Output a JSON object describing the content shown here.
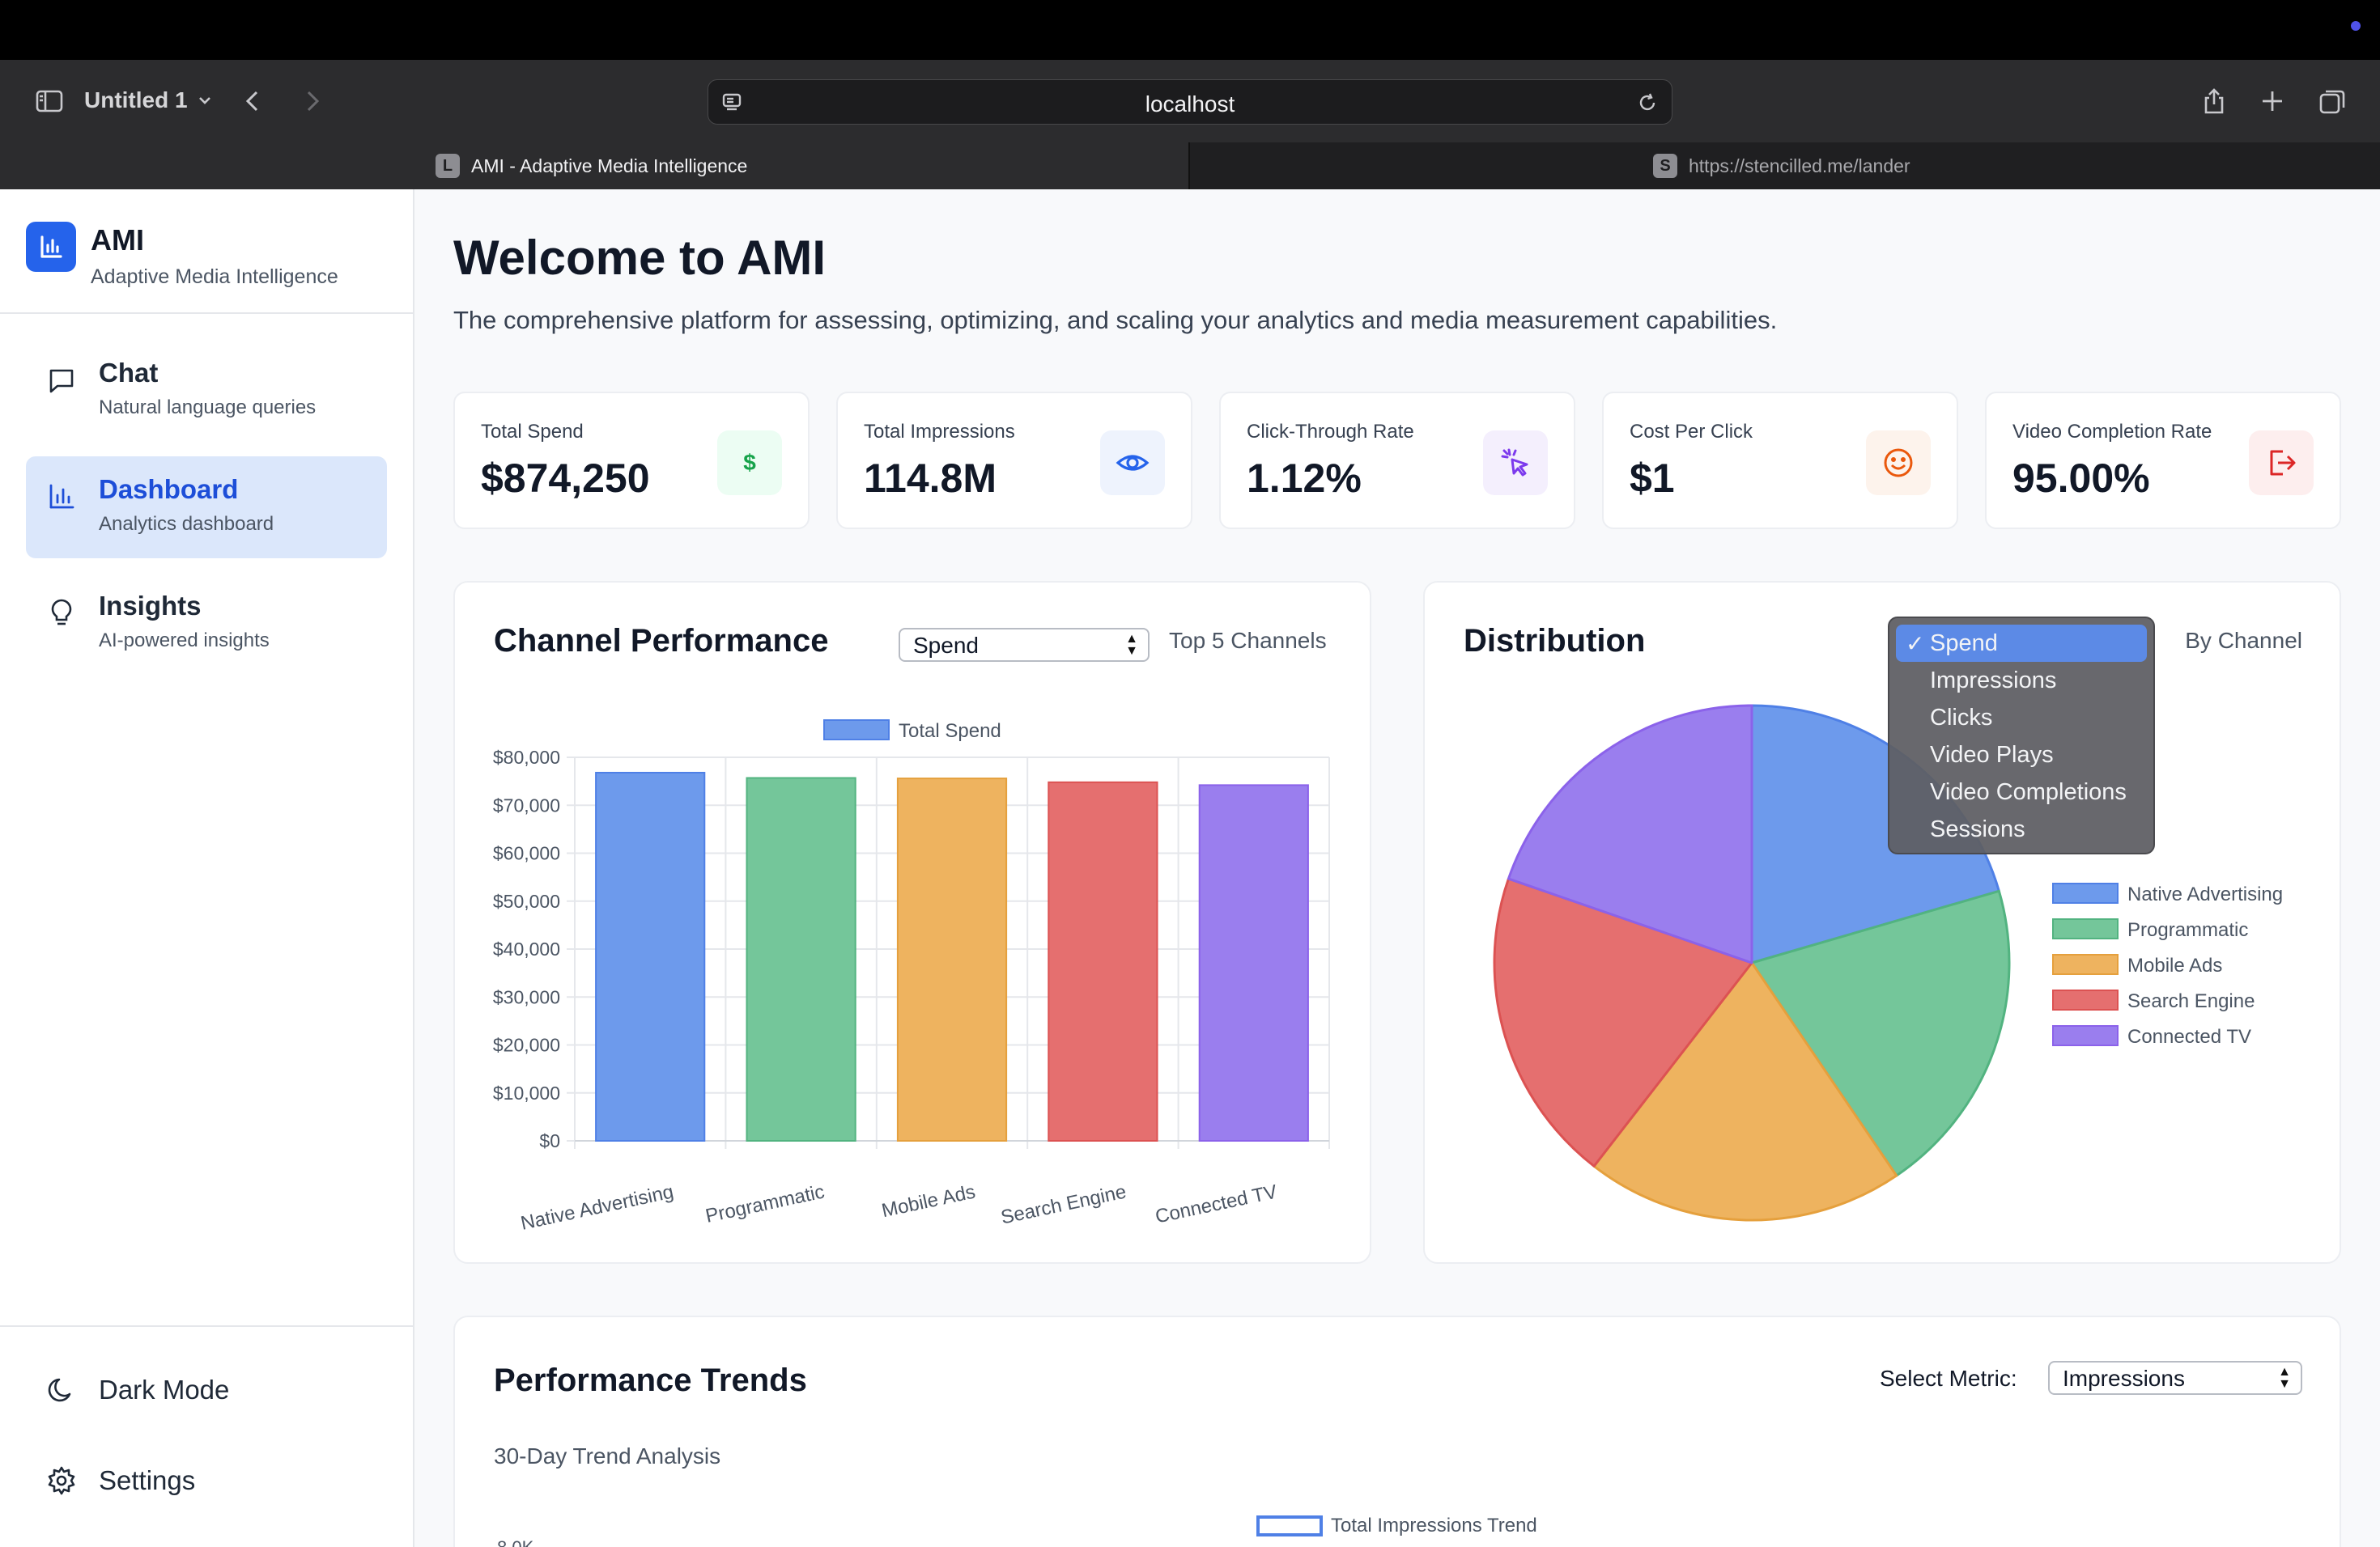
{
  "browser": {
    "window_title": "Untitled 1",
    "url": "localhost",
    "tabs": [
      {
        "favicon": "L",
        "label": "AMI - Adaptive Media Intelligence"
      },
      {
        "favicon": "S",
        "label": "https://stencilled.me/lander"
      }
    ]
  },
  "sidebar": {
    "brand_name": "AMI",
    "brand_sub": "Adaptive Media Intelligence",
    "nav": [
      {
        "title": "Chat",
        "sub": "Natural language queries",
        "icon": "chat-icon"
      },
      {
        "title": "Dashboard",
        "sub": "Analytics dashboard",
        "icon": "bar-chart-icon"
      },
      {
        "title": "Insights",
        "sub": "AI-powered insights",
        "icon": "lightbulb-icon"
      }
    ],
    "footer": [
      {
        "label": "Dark Mode",
        "icon": "moon-icon"
      },
      {
        "label": "Settings",
        "icon": "gear-icon"
      }
    ]
  },
  "main": {
    "title": "Welcome to AMI",
    "subtitle": "The comprehensive platform for assessing, optimizing, and scaling your analytics and media measurement capabilities.",
    "kpis": [
      {
        "label": "Total Spend",
        "value": "$874,250",
        "icon": "dollar-icon",
        "color": "#16a34a",
        "bg": "#ecfdf3"
      },
      {
        "label": "Total Impressions",
        "value": "114.8M",
        "icon": "eye-icon",
        "color": "#2563eb",
        "bg": "#eef3fd"
      },
      {
        "label": "Click-Through Rate",
        "value": "1.12%",
        "icon": "cursor-click-icon",
        "color": "#7c3aed",
        "bg": "#f4effd"
      },
      {
        "label": "Cost Per Click",
        "value": "$1",
        "icon": "smile-icon",
        "color": "#ea580c",
        "bg": "#fdf3ec"
      },
      {
        "label": "Video Completion Rate",
        "value": "95.00%",
        "icon": "exit-icon",
        "color": "#dc2626",
        "bg": "#fdeeee"
      }
    ],
    "channel_performance": {
      "title": "Channel Performance",
      "select_value": "Spend",
      "side_label": "Top 5 Channels"
    },
    "distribution": {
      "title": "Distribution",
      "side_label": "By Channel",
      "dropdown_options": [
        "Spend",
        "Impressions",
        "Clicks",
        "Video Plays",
        "Video Completions",
        "Sessions"
      ],
      "dropdown_selected": "Spend"
    },
    "trends": {
      "title": "Performance Trends",
      "select_label": "Select Metric:",
      "select_value": "Impressions",
      "subtitle": "30-Day Trend Analysis",
      "legend": "Total Impressions Trend",
      "partial_tick": "8.0K"
    }
  },
  "chart_data": [
    {
      "type": "bar",
      "categories": [
        "Native Advertising",
        "Programmatic",
        "Mobile Ads",
        "Search Engine",
        "Connected TV"
      ],
      "series": [
        {
          "name": "Total Spend",
          "values": [
            76800,
            75700,
            75600,
            74800,
            74200
          ]
        }
      ],
      "ylim": [
        0,
        80000
      ],
      "yticks": [
        "$0",
        "$10,000",
        "$20,000",
        "$30,000",
        "$40,000",
        "$50,000",
        "$60,000",
        "$70,000",
        "$80,000"
      ],
      "colors": [
        "#6d9aec",
        "#74c69a",
        "#eeb35f",
        "#e56f6f",
        "#9a7eee"
      ],
      "borders": [
        "#4f80e6",
        "#52b380",
        "#e5a03d",
        "#dc5252",
        "#8b62ea"
      ],
      "legend": "top",
      "grid": true
    },
    {
      "type": "pie",
      "categories": [
        "Native Advertising",
        "Programmatic",
        "Mobile Ads",
        "Search Engine",
        "Connected TV"
      ],
      "values": [
        20.5,
        20.0,
        20.0,
        19.8,
        19.7
      ],
      "colors": [
        "#6d9aec",
        "#74c69a",
        "#eeb35f",
        "#e56f6f",
        "#9a7eee"
      ],
      "borders": [
        "#4f80e6",
        "#52b380",
        "#e5a03d",
        "#dc5252",
        "#8b62ea"
      ],
      "legend": "right"
    }
  ]
}
